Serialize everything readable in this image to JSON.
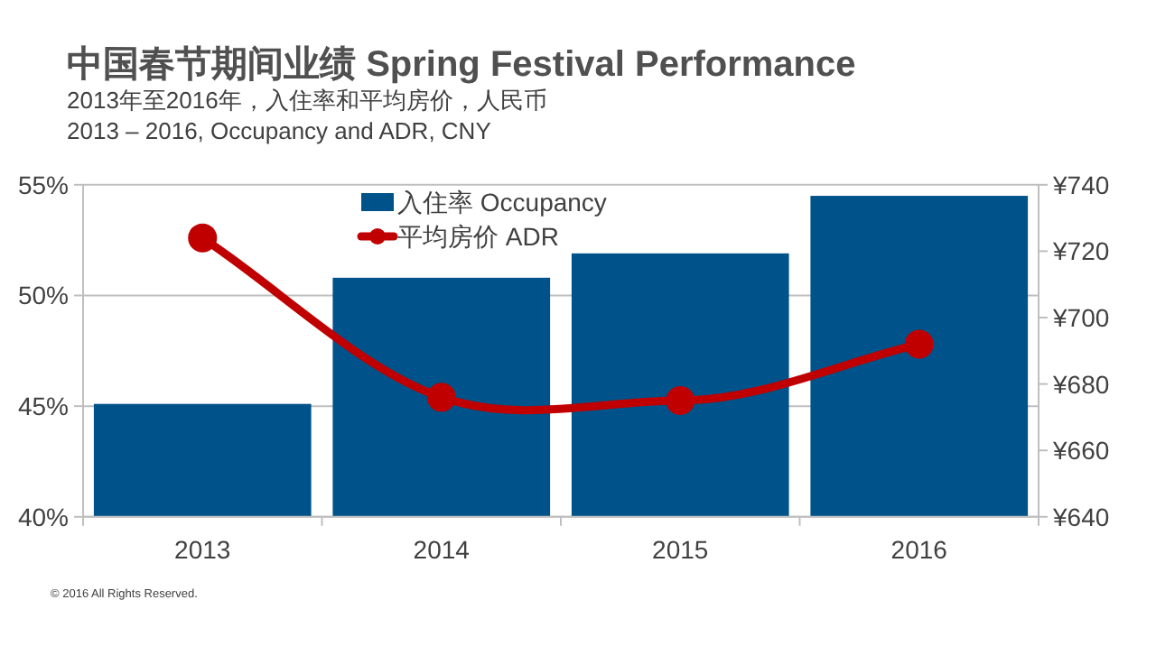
{
  "chart_data": {
    "type": "bar",
    "title": "中国春节期间业绩 **Spring Festival Performance**",
    "subtitle": "2013年至2016年，入住率和平均房价，人民币",
    "annotations": [
      "2013 – 2016, Occupancy and ADR, CNY",
      "© 2016 All Rights Reserved."
    ],
    "categories": [
      "2013",
      "2014",
      "2015",
      "2016"
    ],
    "series": [
      {
        "name": "入住率 Occupancy",
        "color": "#00538a",
        "values": [
          45.1,
          50.8,
          51.9,
          54.5
        ]
      },
      {
        "name": "平均房价 ADR",
        "type": "line",
        "axis": "y2",
        "color": "#c00000",
        "marker": "circle",
        "values": [
          724,
          676,
          675,
          692
        ]
      }
    ],
    "ylim": [
      40,
      55
    ],
    "yticks": [
      {
        "value": 40,
        "label": "40%"
      },
      {
        "value": 45,
        "label": "45%"
      },
      {
        "value": 50,
        "label": "50%"
      },
      {
        "value": 55,
        "label": "55%"
      }
    ],
    "y2lim": [
      640,
      740
    ],
    "y2ticks": [
      {
        "value": 640,
        "label": "¥640"
      },
      {
        "value": 660,
        "label": "¥660"
      },
      {
        "value": 680,
        "label": "¥680"
      },
      {
        "value": 700,
        "label": "¥700"
      },
      {
        "value": 720,
        "label": "¥720"
      },
      {
        "value": 740,
        "label": "¥740"
      }
    ],
    "grid": "y",
    "legend": "top"
  }
}
